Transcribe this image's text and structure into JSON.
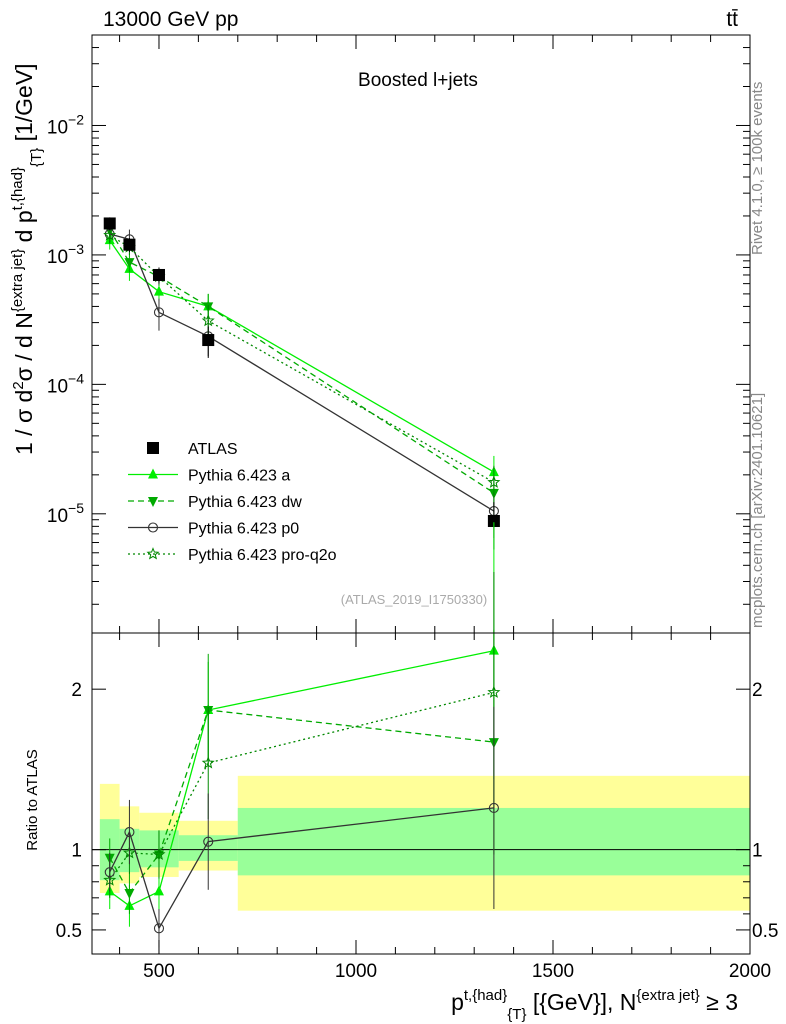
{
  "header": {
    "energy_label": "13000 GeV pp",
    "process_label": "tt̄"
  },
  "side_labels": {
    "rivet": "Rivet 4.1.0, ≥ 100k events",
    "source": "mcplots.cern.ch [arXiv:2401.10621]"
  },
  "colors": {
    "atlas": "#000000",
    "pythia_a": "#00ee00",
    "pythia_dw": "#00aa00",
    "pythia_p0": "#333333",
    "pythia_proq2o": "#008800",
    "band_yellow": "#ffff99",
    "band_green": "#99ff99"
  },
  "chart_data": [
    {
      "type": "scatter",
      "panel": "main",
      "title": "Boosted l+jets",
      "analysis_id": "(ATLAS_2019_I1750330)",
      "ylabel": "1 / σ d²σ / d N{extra jet} d p t,{had}{T} [1/GeV]",
      "y_scale": "log",
      "ylim": [
        1.2e-06,
        0.05
      ],
      "xlim": [
        330,
        2000
      ],
      "y_ticks": [
        {
          "value": 1e-05,
          "base": "10",
          "exp": "−5"
        },
        {
          "value": 0.0001,
          "base": "10",
          "exp": "−4"
        },
        {
          "value": 0.001,
          "base": "10",
          "exp": "−3"
        },
        {
          "value": 0.01,
          "base": "10",
          "exp": "−2"
        }
      ],
      "x": [
        375,
        425,
        500,
        625,
        1350
      ],
      "series": [
        {
          "name": "ATLAS",
          "marker": "square",
          "values": [
            0.00175,
            0.0012,
            0.0007,
            0.00022,
            8.8e-06
          ],
          "err_low": [
            0.0002,
            0.00015,
            0.0001,
            6e-05,
            3.5e-06
          ],
          "err_high": [
            0.0002,
            0.00015,
            0.0001,
            6e-05,
            3.5e-06
          ]
        },
        {
          "name": "Pythia 6.423 a",
          "marker": "triangle-up",
          "line": "solid",
          "values": [
            0.0013,
            0.00078,
            0.00052,
            0.0004,
            2.1e-05
          ],
          "err_low": [
            0.0002,
            0.00015,
            8e-05,
            8e-05,
            7e-06
          ],
          "err_high": [
            0.0002,
            0.00015,
            8e-05,
            0.0001,
            7e-06
          ]
        },
        {
          "name": "Pythia 6.423 dw",
          "marker": "triangle-down",
          "line": "dashed",
          "values": [
            0.00155,
            0.00088,
            0.00068,
            0.0004,
            1.45e-05
          ],
          "err_low": [
            0.0002,
            0.00015,
            0.0001,
            0.0001,
            5e-06
          ],
          "err_high": [
            0.0002,
            0.00015,
            0.0001,
            0.0001,
            5e-06
          ]
        },
        {
          "name": "Pythia 6.423 p0",
          "marker": "circle-open",
          "line": "solid",
          "values": [
            0.00145,
            0.00132,
            0.00036,
            0.000235,
            1.05e-05
          ],
          "err_low": [
            0.0002,
            0.00025,
            0.0001,
            7e-05,
            4e-06
          ],
          "err_high": [
            0.0002,
            0.00025,
            0.0001,
            7e-05,
            4e-06
          ]
        },
        {
          "name": "Pythia 6.423 pro-q2o",
          "marker": "star-open",
          "line": "dotted",
          "values": [
            0.00142,
            0.00115,
            0.00068,
            0.00031,
            1.75e-05
          ],
          "err_low": [
            0.0002,
            0.00015,
            0.0001,
            8e-05,
            6e-06
          ],
          "err_high": [
            0.0002,
            0.00015,
            0.0001,
            0.0001,
            6e-06
          ]
        }
      ],
      "legend_position": "lower-left"
    },
    {
      "type": "scatter",
      "panel": "ratio",
      "ylabel": "Ratio to ATLAS",
      "xlabel": "p t,{had} {T} [{GeV}], N{extra jet} ≥ 3",
      "ylim": [
        0.35,
        2.35
      ],
      "xlim": [
        330,
        2000
      ],
      "x_ticks": [
        "500",
        "1000",
        "1500",
        "2000"
      ],
      "y_ticks": [
        "0.5",
        "1",
        "2"
      ],
      "reference": 1.0,
      "bins": [
        {
          "low": 350,
          "high": 400,
          "band_yellow": [
            0.73,
            1.41
          ],
          "band_green": [
            0.81,
            1.19
          ]
        },
        {
          "low": 400,
          "high": 450,
          "band_yellow": [
            0.79,
            1.27
          ],
          "band_green": [
            0.86,
            1.13
          ]
        },
        {
          "low": 450,
          "high": 550,
          "band_yellow": [
            0.83,
            1.23
          ],
          "band_green": [
            0.89,
            1.12
          ]
        },
        {
          "low": 550,
          "high": 700,
          "band_yellow": [
            0.87,
            1.18
          ],
          "band_green": [
            0.93,
            1.09
          ]
        },
        {
          "low": 700,
          "high": 2000,
          "band_yellow": [
            0.62,
            1.46
          ],
          "band_green": [
            0.84,
            1.26
          ]
        }
      ],
      "x": [
        375,
        425,
        500,
        625,
        1350
      ],
      "series": [
        {
          "name": "Pythia 6.423 a",
          "values": [
            0.74,
            0.65,
            0.74,
            1.87,
            2.24
          ],
          "err": [
            0.11,
            0.13,
            0.12,
            0.3,
            0.8
          ]
        },
        {
          "name": "Pythia 6.423 dw",
          "values": [
            0.95,
            0.73,
            0.97,
            1.87,
            1.67
          ],
          "err": [
            0.12,
            0.13,
            0.15,
            0.35,
            0.7
          ]
        },
        {
          "name": "Pythia 6.423 p0",
          "values": [
            0.86,
            1.11,
            0.51,
            1.05,
            1.26
          ],
          "err": [
            0.12,
            0.2,
            0.12,
            0.3,
            0.63
          ]
        },
        {
          "name": "Pythia 6.423 pro-q2o",
          "values": [
            0.81,
            0.98,
            0.97,
            1.54,
            1.98
          ],
          "err": [
            0.11,
            0.13,
            0.15,
            0.35,
            0.75
          ]
        }
      ]
    }
  ]
}
